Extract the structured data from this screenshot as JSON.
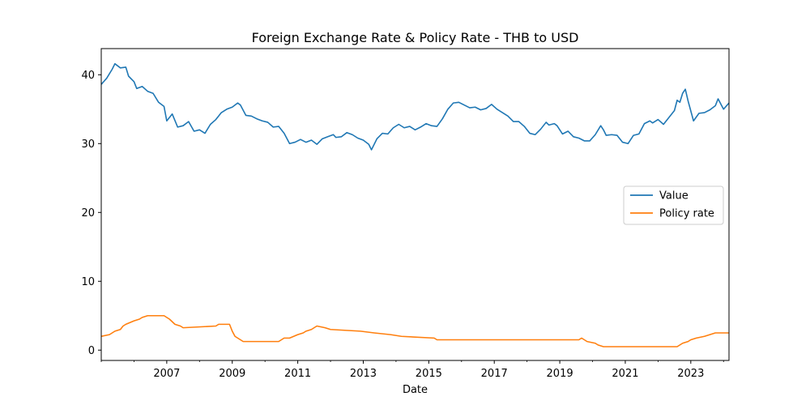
{
  "chart_data": {
    "type": "line",
    "title": "Foreign Exchange Rate & Policy Rate - THB to USD",
    "xlabel": "Date",
    "ylabel": "",
    "xlim": [
      "2005-01-01",
      "2024-03-01"
    ],
    "ylim": [
      -1.5,
      43.8
    ],
    "x_ticks": [
      "2007",
      "2009",
      "2011",
      "2013",
      "2015",
      "2017",
      "2019",
      "2021",
      "2023"
    ],
    "y_ticks": [
      0,
      10,
      20,
      30,
      40
    ],
    "grid": false,
    "legend_position": "center-right",
    "series": [
      {
        "name": "Value",
        "color": "#1f77b4",
        "points": [
          [
            "2005-01-01",
            38.6
          ],
          [
            "2005-03-01",
            39.5
          ],
          [
            "2005-05-01",
            40.8
          ],
          [
            "2005-06-01",
            41.6
          ],
          [
            "2005-08-01",
            41.0
          ],
          [
            "2005-10-01",
            41.1
          ],
          [
            "2005-11-01",
            39.8
          ],
          [
            "2006-01-01",
            39.0
          ],
          [
            "2006-02-01",
            38.0
          ],
          [
            "2006-04-01",
            38.3
          ],
          [
            "2006-06-01",
            37.6
          ],
          [
            "2006-08-01",
            37.3
          ],
          [
            "2006-10-01",
            36.0
          ],
          [
            "2006-12-01",
            35.4
          ],
          [
            "2007-01-01",
            33.3
          ],
          [
            "2007-03-01",
            34.3
          ],
          [
            "2007-05-01",
            32.4
          ],
          [
            "2007-07-01",
            32.6
          ],
          [
            "2007-09-01",
            33.2
          ],
          [
            "2007-11-01",
            31.8
          ],
          [
            "2008-01-01",
            32.0
          ],
          [
            "2008-03-01",
            31.5
          ],
          [
            "2008-05-01",
            32.8
          ],
          [
            "2008-07-01",
            33.5
          ],
          [
            "2008-09-01",
            34.5
          ],
          [
            "2008-11-01",
            35.0
          ],
          [
            "2009-01-01",
            35.3
          ],
          [
            "2009-03-01",
            35.9
          ],
          [
            "2009-04-01",
            35.6
          ],
          [
            "2009-06-01",
            34.1
          ],
          [
            "2009-08-01",
            34.0
          ],
          [
            "2009-10-01",
            33.6
          ],
          [
            "2009-12-01",
            33.3
          ],
          [
            "2010-02-01",
            33.1
          ],
          [
            "2010-04-01",
            32.4
          ],
          [
            "2010-06-01",
            32.5
          ],
          [
            "2010-08-01",
            31.5
          ],
          [
            "2010-10-01",
            30.0
          ],
          [
            "2010-12-01",
            30.2
          ],
          [
            "2011-02-01",
            30.6
          ],
          [
            "2011-04-01",
            30.2
          ],
          [
            "2011-06-01",
            30.5
          ],
          [
            "2011-08-01",
            29.9
          ],
          [
            "2011-10-01",
            30.7
          ],
          [
            "2011-12-01",
            31.0
          ],
          [
            "2012-02-01",
            31.3
          ],
          [
            "2012-03-01",
            30.9
          ],
          [
            "2012-05-01",
            31.0
          ],
          [
            "2012-07-01",
            31.6
          ],
          [
            "2012-09-01",
            31.3
          ],
          [
            "2012-11-01",
            30.8
          ],
          [
            "2013-01-01",
            30.5
          ],
          [
            "2013-03-01",
            29.9
          ],
          [
            "2013-04-01",
            29.1
          ],
          [
            "2013-06-01",
            30.7
          ],
          [
            "2013-08-01",
            31.5
          ],
          [
            "2013-10-01",
            31.4
          ],
          [
            "2013-12-01",
            32.3
          ],
          [
            "2014-02-01",
            32.8
          ],
          [
            "2014-04-01",
            32.3
          ],
          [
            "2014-06-01",
            32.5
          ],
          [
            "2014-08-01",
            32.0
          ],
          [
            "2014-10-01",
            32.4
          ],
          [
            "2014-12-01",
            32.9
          ],
          [
            "2015-02-01",
            32.6
          ],
          [
            "2015-04-01",
            32.5
          ],
          [
            "2015-06-01",
            33.6
          ],
          [
            "2015-08-01",
            35.0
          ],
          [
            "2015-10-01",
            35.9
          ],
          [
            "2015-12-01",
            36.0
          ],
          [
            "2016-02-01",
            35.6
          ],
          [
            "2016-04-01",
            35.2
          ],
          [
            "2016-06-01",
            35.3
          ],
          [
            "2016-08-01",
            34.9
          ],
          [
            "2016-10-01",
            35.1
          ],
          [
            "2016-12-01",
            35.7
          ],
          [
            "2017-02-01",
            35.0
          ],
          [
            "2017-04-01",
            34.5
          ],
          [
            "2017-06-01",
            34.0
          ],
          [
            "2017-08-01",
            33.2
          ],
          [
            "2017-10-01",
            33.2
          ],
          [
            "2017-12-01",
            32.5
          ],
          [
            "2018-02-01",
            31.5
          ],
          [
            "2018-04-01",
            31.3
          ],
          [
            "2018-06-01",
            32.1
          ],
          [
            "2018-08-01",
            33.1
          ],
          [
            "2018-09-01",
            32.7
          ],
          [
            "2018-11-01",
            32.9
          ],
          [
            "2018-12-01",
            32.6
          ],
          [
            "2019-02-01",
            31.4
          ],
          [
            "2019-04-01",
            31.8
          ],
          [
            "2019-06-01",
            31.0
          ],
          [
            "2019-08-01",
            30.8
          ],
          [
            "2019-10-01",
            30.4
          ],
          [
            "2019-12-01",
            30.4
          ],
          [
            "2020-02-01",
            31.3
          ],
          [
            "2020-04-01",
            32.6
          ],
          [
            "2020-05-01",
            32.0
          ],
          [
            "2020-06-01",
            31.2
          ],
          [
            "2020-08-01",
            31.3
          ],
          [
            "2020-10-01",
            31.2
          ],
          [
            "2020-12-01",
            30.2
          ],
          [
            "2021-02-01",
            30.0
          ],
          [
            "2021-04-01",
            31.2
          ],
          [
            "2021-06-01",
            31.4
          ],
          [
            "2021-08-01",
            32.9
          ],
          [
            "2021-10-01",
            33.3
          ],
          [
            "2021-11-01",
            33.0
          ],
          [
            "2022-01-01",
            33.5
          ],
          [
            "2022-03-01",
            32.8
          ],
          [
            "2022-05-01",
            33.8
          ],
          [
            "2022-07-01",
            34.8
          ],
          [
            "2022-08-01",
            36.3
          ],
          [
            "2022-09-01",
            36.0
          ],
          [
            "2022-10-01",
            37.3
          ],
          [
            "2022-11-01",
            37.9
          ],
          [
            "2022-12-01",
            36.2
          ],
          [
            "2023-02-01",
            33.3
          ],
          [
            "2023-04-01",
            34.4
          ],
          [
            "2023-06-01",
            34.5
          ],
          [
            "2023-08-01",
            34.9
          ],
          [
            "2023-10-01",
            35.5
          ],
          [
            "2023-11-01",
            36.5
          ],
          [
            "2024-01-01",
            35.0
          ],
          [
            "2024-03-01",
            35.9
          ]
        ]
      },
      {
        "name": "Policy rate",
        "color": "#ff7f0e",
        "points": [
          [
            "2005-01-01",
            2.0
          ],
          [
            "2005-04-01",
            2.25
          ],
          [
            "2005-06-01",
            2.75
          ],
          [
            "2005-08-01",
            3.0
          ],
          [
            "2005-09-01",
            3.5
          ],
          [
            "2005-10-01",
            3.75
          ],
          [
            "2006-01-01",
            4.25
          ],
          [
            "2006-03-01",
            4.5
          ],
          [
            "2006-04-01",
            4.75
          ],
          [
            "2006-06-01",
            5.0
          ],
          [
            "2006-12-01",
            5.0
          ],
          [
            "2007-01-01",
            4.75
          ],
          [
            "2007-02-01",
            4.5
          ],
          [
            "2007-04-01",
            3.75
          ],
          [
            "2007-06-01",
            3.5
          ],
          [
            "2007-07-01",
            3.25
          ],
          [
            "2008-07-01",
            3.5
          ],
          [
            "2008-08-01",
            3.75
          ],
          [
            "2008-12-01",
            3.75
          ],
          [
            "2009-01-01",
            2.75
          ],
          [
            "2009-02-01",
            2.0
          ],
          [
            "2009-04-01",
            1.5
          ],
          [
            "2009-05-01",
            1.25
          ],
          [
            "2010-06-01",
            1.25
          ],
          [
            "2010-07-01",
            1.5
          ],
          [
            "2010-08-01",
            1.75
          ],
          [
            "2010-10-01",
            1.75
          ],
          [
            "2011-01-01",
            2.25
          ],
          [
            "2011-03-01",
            2.5
          ],
          [
            "2011-04-01",
            2.75
          ],
          [
            "2011-06-01",
            3.0
          ],
          [
            "2011-07-01",
            3.25
          ],
          [
            "2011-08-01",
            3.5
          ],
          [
            "2011-11-01",
            3.25
          ],
          [
            "2012-01-01",
            3.0
          ],
          [
            "2012-12-01",
            2.75
          ],
          [
            "2013-05-01",
            2.5
          ],
          [
            "2013-11-01",
            2.25
          ],
          [
            "2014-03-01",
            2.0
          ],
          [
            "2015-03-01",
            1.75
          ],
          [
            "2015-04-01",
            1.5
          ],
          [
            "2019-08-01",
            1.5
          ],
          [
            "2019-09-01",
            1.75
          ],
          [
            "2019-10-01",
            1.5
          ],
          [
            "2019-11-01",
            1.25
          ],
          [
            "2020-02-01",
            1.0
          ],
          [
            "2020-03-01",
            0.75
          ],
          [
            "2020-05-01",
            0.5
          ],
          [
            "2022-08-01",
            0.5
          ],
          [
            "2022-09-01",
            0.75
          ],
          [
            "2022-10-01",
            1.0
          ],
          [
            "2022-12-01",
            1.25
          ],
          [
            "2023-01-01",
            1.5
          ],
          [
            "2023-03-01",
            1.75
          ],
          [
            "2023-06-01",
            2.0
          ],
          [
            "2023-08-01",
            2.25
          ],
          [
            "2023-10-01",
            2.5
          ],
          [
            "2024-03-01",
            2.5
          ]
        ]
      }
    ]
  }
}
